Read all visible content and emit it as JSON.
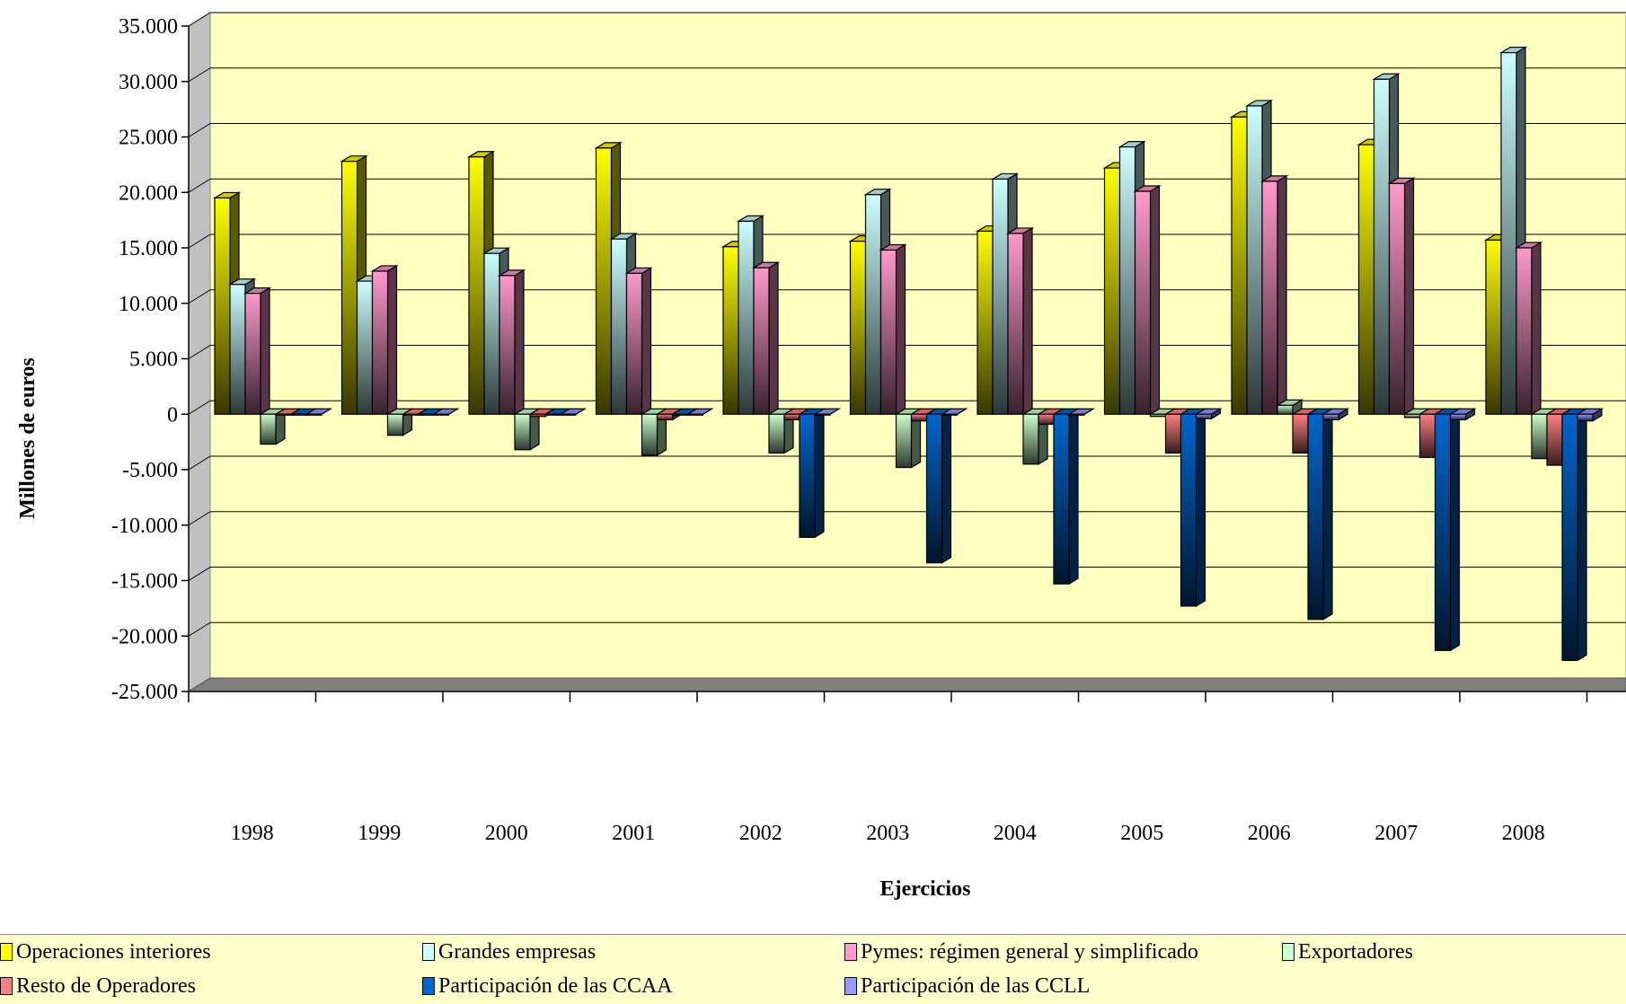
{
  "chart_data": {
    "type": "bar",
    "title": "",
    "xlabel": "Ejercicios",
    "ylabel": "Millones de euros",
    "ylim": [
      -25000,
      35000
    ],
    "yticks": [
      35000,
      30000,
      25000,
      20000,
      15000,
      10000,
      5000,
      0,
      -5000,
      -10000,
      -15000,
      -20000,
      -25000
    ],
    "ytick_labels": [
      "35.000",
      "30.000",
      "25.000",
      "20.000",
      "15.000",
      "10.000",
      "5.000",
      "0",
      "-5.000",
      "-10.000",
      "-15.000",
      "-20.000",
      "-25.000"
    ],
    "categories": [
      "1998",
      "1999",
      "2000",
      "2001",
      "2002",
      "2003",
      "2004",
      "2005",
      "2006",
      "2007",
      "2008"
    ],
    "grid": true,
    "legend_position": "bottom",
    "series": [
      {
        "name": "Operaciones interiores",
        "color": "#ffff00",
        "values": [
          19500,
          22800,
          23200,
          24000,
          15100,
          15600,
          16500,
          22200,
          26800,
          24300,
          15700
        ]
      },
      {
        "name": "Grandes empresas",
        "color": "#ccffff",
        "values": [
          11700,
          12000,
          14500,
          15800,
          17400,
          19800,
          21200,
          24100,
          27800,
          30200,
          32600
        ]
      },
      {
        "name": "Pymes: régimen general y simplificado",
        "color": "#ff99cc",
        "values": [
          10900,
          12900,
          12500,
          12700,
          13200,
          14800,
          16300,
          20100,
          21000,
          20800,
          15000
        ]
      },
      {
        "name": "Exportadores",
        "color": "#ccffcc",
        "values": [
          -2700,
          -1900,
          -3200,
          -3700,
          -3500,
          -4800,
          -4500,
          -200,
          800,
          -300,
          -4000
        ]
      },
      {
        "name": "Resto de Operadores",
        "color": "#ff8080",
        "values": [
          0,
          0,
          -200,
          -500,
          -500,
          -600,
          -900,
          -3500,
          -3500,
          -3900,
          -4600
        ]
      },
      {
        "name": "Participación de las CCAA",
        "color": "#0066cc",
        "values": [
          0,
          0,
          0,
          0,
          -11100,
          -13400,
          -15300,
          -17300,
          -18500,
          -21300,
          -22200
        ]
      },
      {
        "name": "Participación de las CCLL",
        "color": "#9999ff",
        "values": [
          0,
          0,
          0,
          0,
          0,
          0,
          0,
          -400,
          -500,
          -500,
          -600
        ]
      }
    ]
  }
}
